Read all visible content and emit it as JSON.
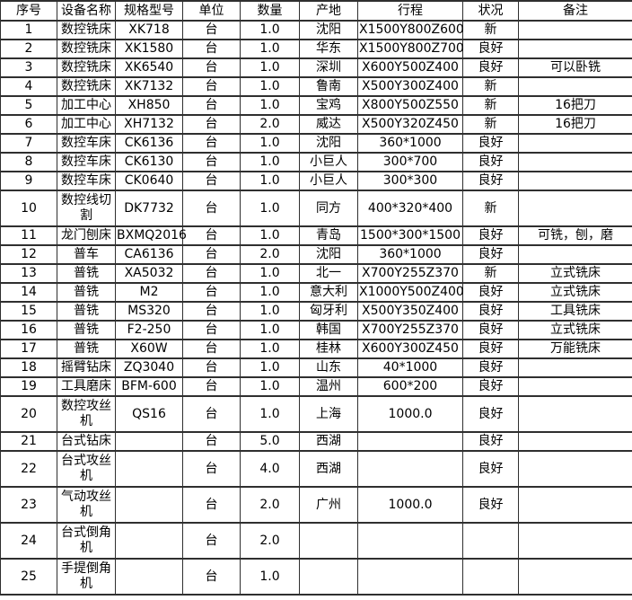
{
  "colors": {
    "border": "#2f2f2f",
    "background": "#ffffff",
    "text": "#000000"
  },
  "table": {
    "headers": [
      "序号",
      "设备名称",
      "规格型号",
      "单位",
      "数量",
      "产地",
      "行程",
      "状况",
      "备注"
    ],
    "rows": [
      [
        "1",
        "数控铣床",
        "XK718",
        "台",
        "1.0",
        "沈阳",
        "X1500Y800Z600",
        "新",
        ""
      ],
      [
        "2",
        "数控铣床",
        "XK1580",
        "台",
        "1.0",
        "华东",
        "X1500Y800Z700",
        "良好",
        ""
      ],
      [
        "3",
        "数控铣床",
        "XK6540",
        "台",
        "1.0",
        "深圳",
        "X600Y500Z400",
        "良好",
        "可以卧铣"
      ],
      [
        "4",
        "数控铣床",
        "XK7132",
        "台",
        "1.0",
        "鲁南",
        "X500Y300Z400",
        "新",
        ""
      ],
      [
        "5",
        "加工中心",
        "XH850",
        "台",
        "1.0",
        "宝鸡",
        "X800Y500Z550",
        "新",
        "16把刀"
      ],
      [
        "6",
        "加工中心",
        "XH7132",
        "台",
        "2.0",
        "威达",
        "X500Y320Z450",
        "新",
        "16把刀"
      ],
      [
        "7",
        "数控车床",
        "CK6136",
        "台",
        "1.0",
        "沈阳",
        "360*1000",
        "良好",
        ""
      ],
      [
        "8",
        "数控车床",
        "CK6130",
        "台",
        "1.0",
        "小巨人",
        "300*700",
        "良好",
        ""
      ],
      [
        "9",
        "数控车床",
        "CK0640",
        "台",
        "1.0",
        "小巨人",
        "300*300",
        "良好",
        ""
      ],
      [
        "10",
        "数控线切割",
        "DK7732",
        "台",
        "1.0",
        "同方",
        "400*320*400",
        "新",
        ""
      ],
      [
        "11",
        "龙门刨床",
        "BXMQ2016",
        "台",
        "1.0",
        "青岛",
        "1500*300*1500",
        "良好",
        "可铣，刨，磨"
      ],
      [
        "12",
        "普车",
        "CA6136",
        "台",
        "2.0",
        "沈阳",
        "360*1000",
        "良好",
        ""
      ],
      [
        "13",
        "普铣",
        "XA5032",
        "台",
        "1.0",
        "北一",
        "X700Y255Z370",
        "新",
        "立式铣床"
      ],
      [
        "14",
        "普铣",
        "M2",
        "台",
        "1.0",
        "意大利",
        "X1000Y500Z400",
        "良好",
        "立式铣床"
      ],
      [
        "15",
        "普铣",
        "MS320",
        "台",
        "1.0",
        "匈牙利",
        "X500Y350Z400",
        "良好",
        "工具铣床"
      ],
      [
        "16",
        "普铣",
        "F2-250",
        "台",
        "1.0",
        "韩国",
        "X700Y255Z370",
        "良好",
        "立式铣床"
      ],
      [
        "17",
        "普铣",
        "X60W",
        "台",
        "1.0",
        "桂林",
        "X600Y300Z450",
        "良好",
        "万能铣床"
      ],
      [
        "18",
        "摇臂钻床",
        "ZQ3040",
        "台",
        "1.0",
        "山东",
        "40*1000",
        "良好",
        ""
      ],
      [
        "19",
        "工具磨床",
        "BFM-600",
        "台",
        "1.0",
        "温州",
        "600*200",
        "良好",
        ""
      ],
      [
        "20",
        "数控攻丝机",
        "QS16",
        "台",
        "1.0",
        "上海",
        "1000.0",
        "良好",
        ""
      ],
      [
        "21",
        "台式钻床",
        "",
        "台",
        "5.0",
        "西湖",
        "",
        "良好",
        ""
      ],
      [
        "22",
        "台式攻丝机",
        "",
        "台",
        "4.0",
        "西湖",
        "",
        "良好",
        ""
      ],
      [
        "23",
        "气动攻丝机",
        "",
        "台",
        "2.0",
        "广州",
        "1000.0",
        "良好",
        ""
      ],
      [
        "24",
        "台式倒角机",
        "",
        "台",
        "2.0",
        "",
        "",
        "",
        ""
      ],
      [
        "25",
        "手提倒角机",
        "",
        "台",
        "1.0",
        "",
        "",
        "",
        ""
      ]
    ]
  }
}
